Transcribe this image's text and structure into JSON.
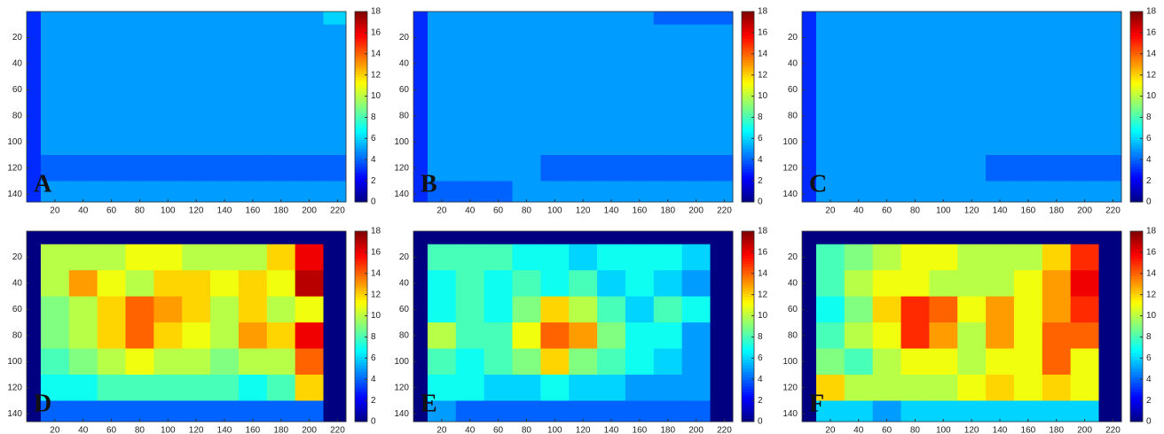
{
  "chart_data": [
    {
      "type": "heatmap",
      "label": "A",
      "colormap": "jet",
      "xbins": [
        0,
        10,
        30,
        50,
        70,
        90,
        110,
        130,
        150,
        170,
        190,
        210,
        226
      ],
      "ybins": [
        0,
        10,
        30,
        50,
        70,
        90,
        110,
        130,
        146
      ],
      "xlim": [
        0,
        226
      ],
      "ylim": [
        0,
        146
      ],
      "xticks": [
        20,
        40,
        60,
        80,
        100,
        120,
        140,
        160,
        180,
        200,
        220
      ],
      "yticks": [
        20,
        40,
        60,
        80,
        100,
        120,
        140
      ],
      "clim": [
        0,
        18
      ],
      "cticks": [
        0,
        2,
        4,
        6,
        8,
        10,
        12,
        14,
        16,
        18
      ],
      "values": [
        [
          3,
          5,
          5,
          5,
          5,
          5,
          5,
          5,
          5,
          5,
          5,
          6
        ],
        [
          3,
          5,
          5,
          5,
          5,
          5,
          5,
          5,
          5,
          5,
          5,
          5
        ],
        [
          3,
          5,
          5,
          5,
          5,
          5,
          5,
          5,
          5,
          5,
          5,
          5
        ],
        [
          3,
          5,
          5,
          5,
          5,
          5,
          5,
          5,
          5,
          5,
          5,
          5
        ],
        [
          3,
          5,
          5,
          5,
          5,
          5,
          5,
          5,
          5,
          5,
          5,
          5
        ],
        [
          3,
          5,
          5,
          5,
          5,
          5,
          5,
          5,
          5,
          5,
          5,
          5
        ],
        [
          3,
          4,
          4,
          4,
          4,
          4,
          4,
          4,
          4,
          4,
          4,
          4
        ],
        [
          3,
          5,
          5,
          5,
          5,
          5,
          5,
          5,
          5,
          5,
          5,
          5
        ]
      ]
    },
    {
      "type": "heatmap",
      "label": "B",
      "colormap": "jet",
      "xbins": [
        0,
        10,
        30,
        50,
        70,
        90,
        110,
        130,
        150,
        170,
        190,
        210,
        226
      ],
      "ybins": [
        0,
        10,
        30,
        50,
        70,
        90,
        110,
        130,
        146
      ],
      "xlim": [
        0,
        226
      ],
      "ylim": [
        0,
        146
      ],
      "xticks": [
        20,
        40,
        60,
        80,
        100,
        120,
        140,
        160,
        180,
        200,
        220
      ],
      "yticks": [
        20,
        40,
        60,
        80,
        100,
        120,
        140
      ],
      "clim": [
        0,
        18
      ],
      "cticks": [
        0,
        2,
        4,
        6,
        8,
        10,
        12,
        14,
        16,
        18
      ],
      "values": [
        [
          3,
          5,
          5,
          5,
          5,
          5,
          5,
          5,
          5,
          4,
          4,
          4
        ],
        [
          3,
          5,
          5,
          5,
          5,
          5,
          5,
          5,
          5,
          5,
          5,
          5
        ],
        [
          3,
          5,
          5,
          5,
          5,
          5,
          5,
          5,
          5,
          5,
          5,
          5
        ],
        [
          3,
          5,
          5,
          5,
          5,
          5,
          5,
          5,
          5,
          5,
          5,
          5
        ],
        [
          3,
          5,
          5,
          5,
          5,
          5,
          5,
          5,
          5,
          5,
          5,
          5
        ],
        [
          3,
          5,
          5,
          5,
          5,
          5,
          5,
          5,
          5,
          5,
          5,
          5
        ],
        [
          3,
          5,
          5,
          5,
          5,
          4,
          4,
          4,
          4,
          4,
          4,
          4
        ],
        [
          3,
          4,
          4,
          4,
          5,
          5,
          5,
          5,
          5,
          5,
          5,
          5
        ]
      ]
    },
    {
      "type": "heatmap",
      "label": "C",
      "colormap": "jet",
      "xbins": [
        0,
        10,
        30,
        50,
        70,
        90,
        110,
        130,
        150,
        170,
        190,
        210,
        226
      ],
      "ybins": [
        0,
        10,
        30,
        50,
        70,
        90,
        110,
        130,
        146
      ],
      "xlim": [
        0,
        226
      ],
      "ylim": [
        0,
        146
      ],
      "xticks": [
        20,
        40,
        60,
        80,
        100,
        120,
        140,
        160,
        180,
        200,
        220
      ],
      "yticks": [
        20,
        40,
        60,
        80,
        100,
        120,
        140
      ],
      "clim": [
        0,
        18
      ],
      "cticks": [
        0,
        2,
        4,
        6,
        8,
        10,
        12,
        14,
        16,
        18
      ],
      "values": [
        [
          3,
          5,
          5,
          5,
          5,
          5,
          5,
          5,
          5,
          5,
          5,
          5
        ],
        [
          3,
          5,
          5,
          5,
          5,
          5,
          5,
          5,
          5,
          5,
          5,
          5
        ],
        [
          3,
          5,
          5,
          5,
          5,
          5,
          5,
          5,
          5,
          5,
          5,
          5
        ],
        [
          3,
          5,
          5,
          5,
          5,
          5,
          5,
          5,
          5,
          5,
          5,
          5
        ],
        [
          3,
          5,
          5,
          5,
          5,
          5,
          5,
          5,
          5,
          5,
          5,
          5
        ],
        [
          3,
          5,
          5,
          5,
          5,
          5,
          5,
          5,
          5,
          5,
          5,
          5
        ],
        [
          3,
          5,
          5,
          5,
          5,
          5,
          5,
          4,
          4,
          4,
          4,
          4
        ],
        [
          3,
          5,
          5,
          5,
          5,
          5,
          5,
          5,
          5,
          5,
          5,
          5
        ]
      ]
    },
    {
      "type": "heatmap",
      "label": "D",
      "colormap": "jet",
      "xbins": [
        0,
        10,
        30,
        50,
        70,
        90,
        110,
        130,
        150,
        170,
        190,
        210,
        226
      ],
      "ybins": [
        0,
        10,
        30,
        50,
        70,
        90,
        110,
        130,
        146
      ],
      "xlim": [
        0,
        226
      ],
      "ylim": [
        0,
        146
      ],
      "xticks": [
        20,
        40,
        60,
        80,
        100,
        120,
        140,
        160,
        180,
        200,
        220
      ],
      "yticks": [
        20,
        40,
        60,
        80,
        100,
        120,
        140
      ],
      "clim": [
        0,
        18
      ],
      "cticks": [
        0,
        2,
        4,
        6,
        8,
        10,
        12,
        14,
        16,
        18
      ],
      "values": [
        [
          0,
          0,
          0,
          0,
          0,
          0,
          0,
          0,
          0,
          0,
          0,
          0
        ],
        [
          0,
          10,
          10,
          10,
          11,
          11,
          10,
          10,
          10,
          12,
          16,
          0
        ],
        [
          0,
          10,
          13,
          11,
          10,
          12,
          12,
          11,
          12,
          11,
          17,
          0
        ],
        [
          0,
          9,
          10,
          12,
          14,
          13,
          12,
          10,
          12,
          10,
          11,
          0
        ],
        [
          0,
          9,
          10,
          12,
          14,
          12,
          11,
          10,
          13,
          12,
          16,
          0
        ],
        [
          0,
          8,
          9,
          10,
          11,
          10,
          10,
          9,
          10,
          10,
          14,
          0
        ],
        [
          0,
          7,
          7,
          8,
          8,
          8,
          8,
          8,
          7,
          8,
          12,
          0
        ],
        [
          0,
          4,
          4,
          4,
          4,
          4,
          4,
          4,
          4,
          4,
          4,
          0
        ]
      ]
    },
    {
      "type": "heatmap",
      "label": "E",
      "colormap": "jet",
      "xbins": [
        0,
        10,
        30,
        50,
        70,
        90,
        110,
        130,
        150,
        170,
        190,
        210,
        226
      ],
      "ybins": [
        0,
        10,
        30,
        50,
        70,
        90,
        110,
        130,
        146
      ],
      "xlim": [
        0,
        226
      ],
      "ylim": [
        0,
        146
      ],
      "xticks": [
        20,
        40,
        60,
        80,
        100,
        120,
        140,
        160,
        180,
        200,
        220
      ],
      "yticks": [
        20,
        40,
        60,
        80,
        100,
        120,
        140
      ],
      "clim": [
        0,
        18
      ],
      "cticks": [
        0,
        2,
        4,
        6,
        8,
        10,
        12,
        14,
        16,
        18
      ],
      "values": [
        [
          0,
          0,
          0,
          0,
          0,
          0,
          0,
          0,
          0,
          0,
          0,
          0
        ],
        [
          0,
          8,
          8,
          8,
          7,
          7,
          6,
          7,
          7,
          7,
          6,
          0
        ],
        [
          0,
          7,
          8,
          7,
          8,
          7,
          8,
          6,
          7,
          6,
          5,
          0
        ],
        [
          0,
          7,
          8,
          7,
          9,
          12,
          10,
          8,
          6,
          8,
          7,
          0
        ],
        [
          0,
          10,
          8,
          8,
          11,
          14,
          13,
          9,
          7,
          7,
          5,
          0
        ],
        [
          0,
          8,
          7,
          8,
          9,
          12,
          9,
          8,
          7,
          6,
          5,
          0
        ],
        [
          0,
          7,
          7,
          6,
          6,
          7,
          6,
          6,
          5,
          5,
          5,
          0
        ],
        [
          0,
          5,
          4,
          4,
          4,
          4,
          4,
          4,
          4,
          4,
          4,
          0
        ]
      ]
    },
    {
      "type": "heatmap",
      "label": "F",
      "colormap": "jet",
      "xbins": [
        0,
        10,
        30,
        50,
        70,
        90,
        110,
        130,
        150,
        170,
        190,
        210,
        226
      ],
      "ybins": [
        0,
        10,
        30,
        50,
        70,
        90,
        110,
        130,
        146
      ],
      "xlim": [
        0,
        226
      ],
      "ylim": [
        0,
        146
      ],
      "xticks": [
        20,
        40,
        60,
        80,
        100,
        120,
        140,
        160,
        180,
        200,
        220
      ],
      "yticks": [
        20,
        40,
        60,
        80,
        100,
        120,
        140
      ],
      "clim": [
        0,
        18
      ],
      "cticks": [
        0,
        2,
        4,
        6,
        8,
        10,
        12,
        14,
        16,
        18
      ],
      "values": [
        [
          0,
          0,
          0,
          0,
          0,
          0,
          0,
          0,
          0,
          0,
          0,
          0
        ],
        [
          0,
          8,
          9,
          10,
          11,
          11,
          10,
          10,
          10,
          12,
          15,
          0
        ],
        [
          0,
          8,
          10,
          11,
          11,
          10,
          10,
          10,
          11,
          13,
          16,
          0
        ],
        [
          0,
          7,
          9,
          12,
          15,
          14,
          11,
          13,
          11,
          13,
          15,
          0
        ],
        [
          0,
          8,
          10,
          11,
          15,
          13,
          10,
          13,
          11,
          14,
          14,
          0
        ],
        [
          0,
          9,
          8,
          10,
          11,
          11,
          10,
          11,
          11,
          14,
          11,
          0
        ],
        [
          0,
          12,
          10,
          10,
          10,
          10,
          11,
          12,
          11,
          12,
          11,
          0
        ],
        [
          0,
          6,
          6,
          5,
          6,
          6,
          6,
          6,
          6,
          6,
          6,
          0
        ]
      ]
    }
  ]
}
